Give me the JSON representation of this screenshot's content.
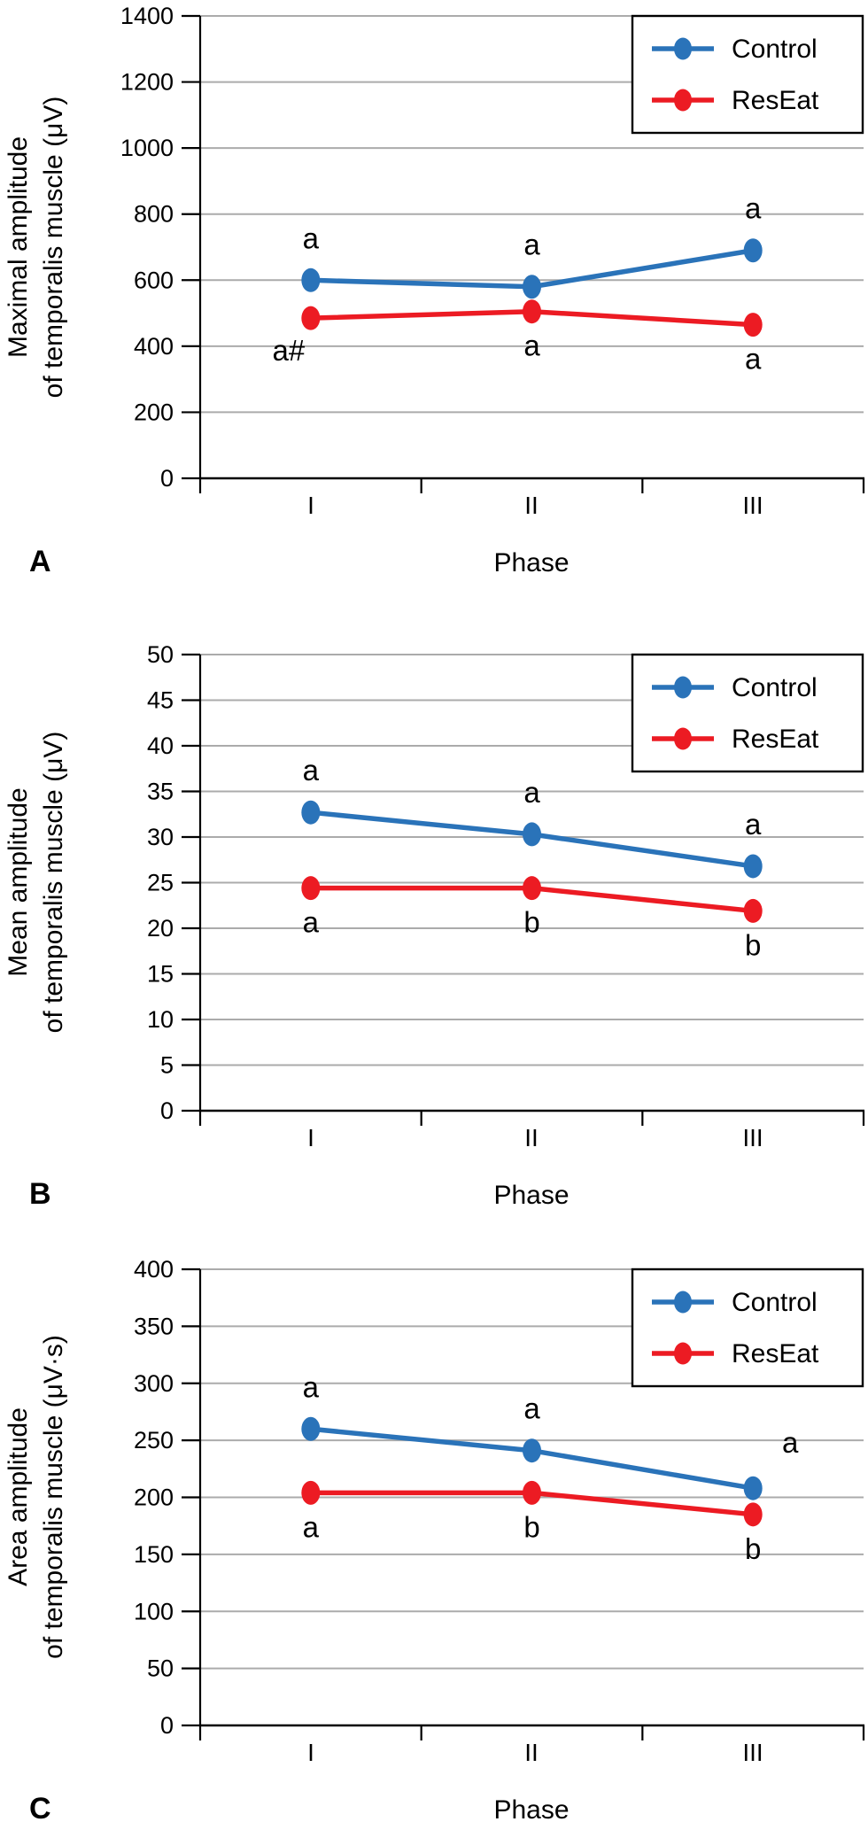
{
  "figure": {
    "x_axis_title": "Phase",
    "legend_entries": [
      "Control",
      "ResEat"
    ],
    "panel_labels": [
      "A",
      "B",
      "C"
    ]
  },
  "colors": {
    "control": "#2A73B9",
    "reseat": "#EC1B23",
    "gridline": "#ABABAB",
    "axis": "#000000",
    "legend_border": "#000000",
    "legend_bg": "#ffffff"
  },
  "chart_data": [
    {
      "type": "line",
      "panel_label": "A",
      "ylabel_lines": [
        "Maximal amplitude",
        "of temporalis muscle (μV)"
      ],
      "xlabel": "Phase",
      "categories": [
        "I",
        "II",
        "III"
      ],
      "ylim": [
        0,
        1400
      ],
      "ytick_step": 200,
      "grid": true,
      "legend_position": "top-right",
      "series": [
        {
          "name": "Control",
          "color_key": "control",
          "values": [
            600,
            580,
            690
          ],
          "annotations": [
            {
              "text": "a",
              "placement": "above"
            },
            {
              "text": "a",
              "placement": "above"
            },
            {
              "text": "a",
              "placement": "above"
            }
          ]
        },
        {
          "name": "ResEat",
          "color_key": "reseat",
          "values": [
            485,
            505,
            465
          ],
          "annotations": [
            {
              "text": "a#",
              "placement": "below",
              "dx": -25,
              "dy": 48
            },
            {
              "text": "a",
              "placement": "below"
            },
            {
              "text": "a",
              "placement": "below"
            }
          ]
        }
      ]
    },
    {
      "type": "line",
      "panel_label": "B",
      "ylabel_lines": [
        "Mean amplitude",
        "of temporalis muscle (μV)"
      ],
      "xlabel": "Phase",
      "categories": [
        "I",
        "II",
        "III"
      ],
      "ylim": [
        0,
        50
      ],
      "ytick_step": 5,
      "grid": true,
      "legend_position": "top-right",
      "series": [
        {
          "name": "Control",
          "color_key": "control",
          "values": [
            32.7,
            30.3,
            26.8
          ],
          "annotations": [
            {
              "text": "a",
              "placement": "above"
            },
            {
              "text": "a",
              "placement": "above"
            },
            {
              "text": "a",
              "placement": "above"
            }
          ]
        },
        {
          "name": "ResEat",
          "color_key": "reseat",
          "values": [
            24.4,
            24.4,
            21.9
          ],
          "annotations": [
            {
              "text": "a",
              "placement": "below"
            },
            {
              "text": "b",
              "placement": "below"
            },
            {
              "text": "b",
              "placement": "below"
            }
          ]
        }
      ]
    },
    {
      "type": "line",
      "panel_label": "C",
      "ylabel_lines": [
        "Area amplitude",
        "of temporalis muscle (μV·s)"
      ],
      "xlabel": "Phase",
      "categories": [
        "I",
        "II",
        "III"
      ],
      "ylim": [
        0,
        400
      ],
      "ytick_step": 50,
      "grid": true,
      "legend_position": "top-right",
      "series": [
        {
          "name": "Control",
          "color_key": "control",
          "values": [
            260,
            241,
            208
          ],
          "annotations": [
            {
              "text": "a",
              "placement": "above"
            },
            {
              "text": "a",
              "placement": "above"
            },
            {
              "text": "a",
              "placement": "above",
              "dx": 42,
              "dy": -40
            }
          ]
        },
        {
          "name": "ResEat",
          "color_key": "reseat",
          "values": [
            204,
            204,
            185
          ],
          "annotations": [
            {
              "text": "a",
              "placement": "below"
            },
            {
              "text": "b",
              "placement": "below"
            },
            {
              "text": "b",
              "placement": "below"
            }
          ]
        }
      ]
    }
  ]
}
